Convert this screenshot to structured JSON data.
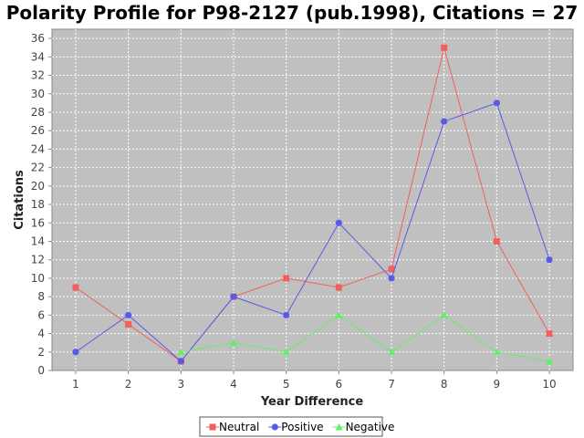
{
  "chart_data": {
    "type": "line",
    "title": "Polarity Profile for P98-2127 (pub.1998), Citations = 27",
    "xlabel": "Year Difference",
    "ylabel": "Citations",
    "x": [
      1,
      2,
      3,
      4,
      5,
      6,
      7,
      8,
      9,
      10
    ],
    "xlim": [
      0.55,
      10.45
    ],
    "ylim": [
      0,
      37
    ],
    "y_ticks": [
      0,
      2,
      4,
      6,
      8,
      10,
      12,
      14,
      16,
      18,
      20,
      22,
      24,
      26,
      28,
      30,
      32,
      34,
      36
    ],
    "grid": true,
    "legend_position": "bottom-center",
    "plot_background": "#c0c0c0",
    "series": [
      {
        "name": "Neutral",
        "color": "#f25f5c",
        "marker": "square",
        "values": [
          9,
          5,
          1,
          8,
          10,
          9,
          11,
          35,
          14,
          4
        ]
      },
      {
        "name": "Positive",
        "color": "#5a5ae6",
        "marker": "circle",
        "values": [
          2,
          6,
          1,
          8,
          6,
          16,
          10,
          27,
          29,
          12
        ]
      },
      {
        "name": "Negative",
        "color": "#66ee66",
        "marker": "triangle",
        "values": [
          null,
          null,
          2,
          3,
          2,
          6,
          2,
          6,
          2,
          1
        ]
      }
    ]
  }
}
